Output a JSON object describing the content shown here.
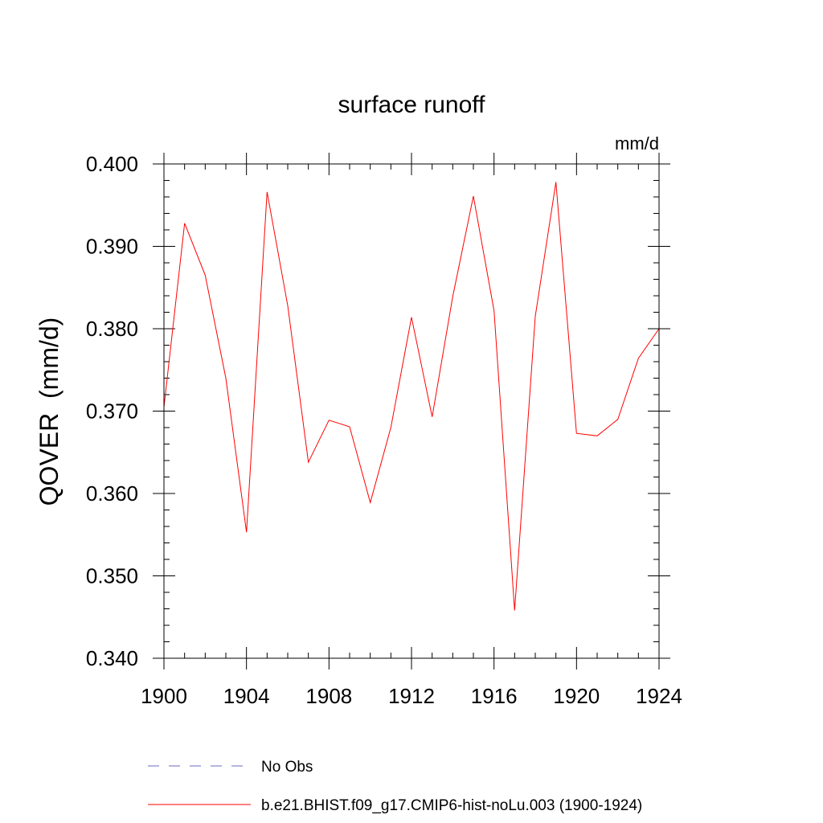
{
  "chart_data": {
    "type": "line",
    "title": "surface runoff",
    "units_label": "mm/d",
    "xlabel": "",
    "ylabel": "QOVER  (mm/d)",
    "xlim": [
      1900,
      1924
    ],
    "ylim": [
      0.34,
      0.4
    ],
    "x_ticks": [
      1900,
      1904,
      1908,
      1912,
      1916,
      1920,
      1924
    ],
    "y_ticks": [
      0.34,
      0.35,
      0.36,
      0.37,
      0.38,
      0.39,
      0.4
    ],
    "x_tick_labels": [
      "1900",
      "1904",
      "1908",
      "1912",
      "1916",
      "1920",
      "1924"
    ],
    "y_tick_labels": [
      "0.340",
      "0.350",
      "0.360",
      "0.370",
      "0.380",
      "0.390",
      "0.400"
    ],
    "grid": false,
    "legend_position": "bottom",
    "series": [
      {
        "name": "b.e21.BHIST.f09_g17.CMIP6-hist-noLu.003 (1900-1924)",
        "color": "#ff0000",
        "style": "solid",
        "x": [
          1900,
          1901,
          1902,
          1903,
          1904,
          1905,
          1906,
          1907,
          1908,
          1909,
          1910,
          1911,
          1912,
          1913,
          1914,
          1915,
          1916,
          1917,
          1918,
          1919,
          1920,
          1921,
          1922,
          1923,
          1924
        ],
        "values": [
          0.3705,
          0.3928,
          0.3865,
          0.374,
          0.3553,
          0.3966,
          0.3828,
          0.3638,
          0.3689,
          0.3681,
          0.3589,
          0.368,
          0.3814,
          0.3693,
          0.3839,
          0.3961,
          0.3822,
          0.3458,
          0.3815,
          0.3978,
          0.3673,
          0.367,
          0.369,
          0.3764,
          0.38
        ]
      }
    ],
    "legend": [
      {
        "label": "No Obs",
        "color": "#6a6ac0",
        "style": "dashed"
      },
      {
        "label": "b.e21.BHIST.f09_g17.CMIP6-hist-noLu.003 (1900-1924)",
        "color": "#ff0000",
        "style": "solid"
      }
    ]
  }
}
